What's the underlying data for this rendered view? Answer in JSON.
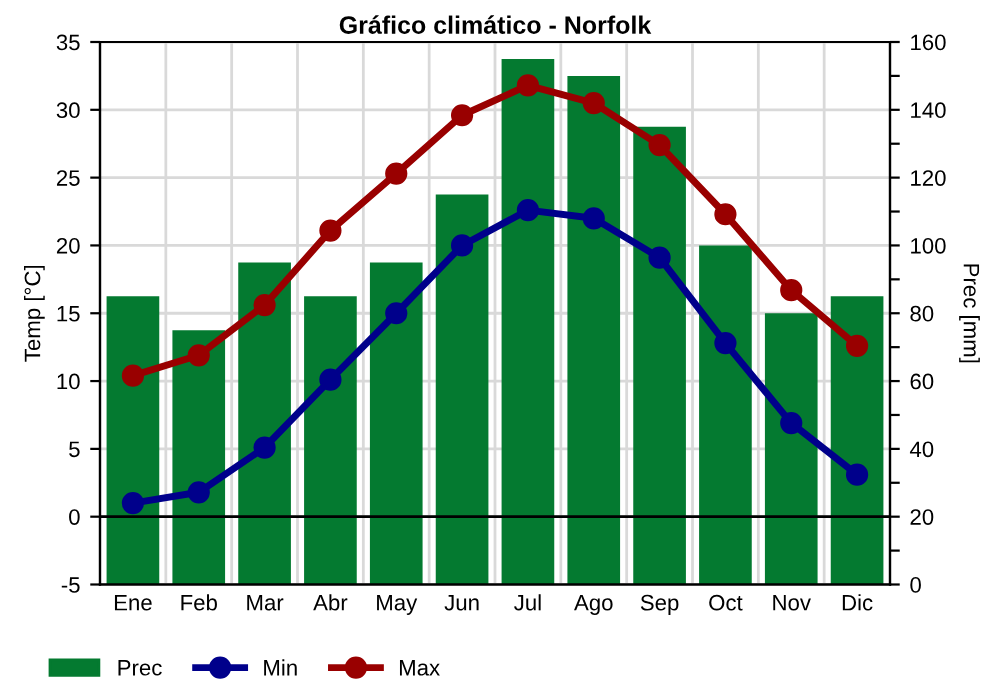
{
  "chart_data": {
    "type": "bar",
    "title": "Gráfico climático - Norfolk",
    "ylabel": "Temp [°C]",
    "y2label": "Prec [mm]",
    "categories": [
      "Ene",
      "Feb",
      "Mar",
      "Abr",
      "May",
      "Jun",
      "Jul",
      "Ago",
      "Sep",
      "Oct",
      "Nov",
      "Dic"
    ],
    "series": [
      {
        "name": "Prec",
        "axis": "y2",
        "color": "#047a30",
        "values": [
          85,
          75,
          95,
          85,
          95,
          115,
          155,
          150,
          135,
          100,
          80,
          85
        ]
      },
      {
        "name": "Min",
        "type": "line",
        "color": "#00008b",
        "marker": "circle",
        "values": [
          1,
          1.8,
          5.1,
          10.1,
          15,
          20,
          22.6,
          22,
          19.1,
          12.8,
          6.9,
          3.1
        ]
      },
      {
        "name": "Max",
        "type": "line",
        "color": "#990000",
        "marker": "circle",
        "values": [
          10.4,
          11.9,
          15.6,
          21.1,
          25.3,
          29.6,
          31.8,
          30.5,
          27.4,
          22.3,
          16.7,
          12.6
        ]
      }
    ],
    "ylim": [
      -5,
      35
    ],
    "yticks": [
      -5,
      0,
      5,
      10,
      15,
      20,
      25,
      30,
      35
    ],
    "y2lim": [
      0,
      160
    ],
    "y2ticks": [
      0,
      {
        "value": 10,
        "label": null
      },
      20,
      {
        "value": 30,
        "label": null
      },
      40,
      {
        "value": 50,
        "label": null
      },
      60,
      {
        "value": 70,
        "label": null
      },
      80,
      {
        "value": 90,
        "label": null
      },
      100,
      {
        "value": 110,
        "label": null
      },
      120,
      {
        "value": 130,
        "label": null
      },
      140,
      {
        "value": 150,
        "label": null
      },
      160
    ],
    "ref_lines": [
      {
        "axis": "y",
        "value": 0,
        "color": "#000000"
      }
    ],
    "grid": true,
    "legend": "bottom left",
    "line_style": "solid"
  }
}
